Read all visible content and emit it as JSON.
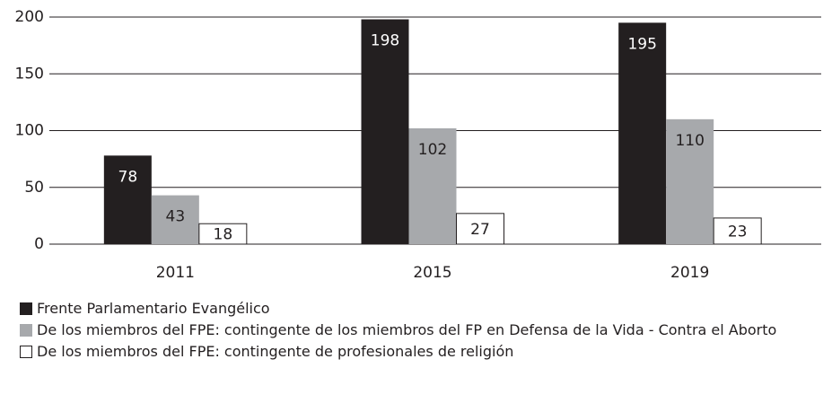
{
  "chart_data": {
    "type": "bar",
    "categories": [
      "2011",
      "2015",
      "2019"
    ],
    "series": [
      {
        "name": "Frente Parlamentario Evangélico",
        "color": "#231f20",
        "values": [
          78,
          198,
          195
        ]
      },
      {
        "name": "De los miembros del FPE: contingente de los miembros del FP en Defensa de la Vida - Contra el Aborto",
        "color": "#a7a9ac",
        "values": [
          43,
          102,
          110
        ]
      },
      {
        "name": "De los miembros del FPE: contingente de profesionales de religión",
        "color": "#ffffff",
        "values": [
          18,
          27,
          23
        ]
      }
    ],
    "ylim": [
      0,
      200
    ],
    "yticks": [
      0,
      50,
      100,
      150,
      200
    ],
    "grid": true,
    "legend": "bottom"
  }
}
